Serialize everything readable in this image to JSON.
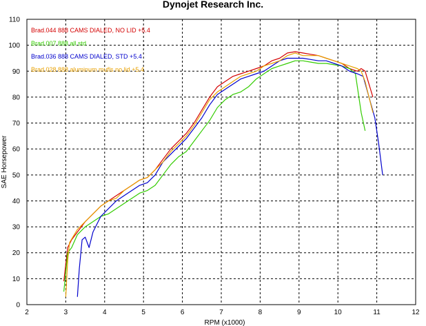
{
  "chart_data": {
    "type": "line",
    "title": "Dynojet  Research  Inc.",
    "xlabel": "RPM (x1000)",
    "ylabel": "SAE Horsepower",
    "xlim": [
      2,
      12
    ],
    "ylim": [
      0,
      110
    ],
    "xticks": [
      "2",
      "3",
      "4",
      "5",
      "6",
      "7",
      "8",
      "9",
      "10",
      "11",
      "12"
    ],
    "yticks": [
      "0",
      "10",
      "20",
      "30",
      "40",
      "50",
      "60",
      "70",
      "80",
      "90",
      "100",
      "110"
    ],
    "grid": true,
    "legend_position": "top-left",
    "series": [
      {
        "name": "Brad.044   888 CAMS DIALED, NO LID +5.4",
        "color": "#d40000",
        "points": [
          [
            2.95,
            9
          ],
          [
            3.05,
            22
          ],
          [
            3.15,
            25
          ],
          [
            3.3,
            28
          ],
          [
            3.5,
            32
          ],
          [
            3.7,
            35
          ],
          [
            3.9,
            38
          ],
          [
            4.1,
            40
          ],
          [
            4.3,
            42
          ],
          [
            4.5,
            44
          ],
          [
            4.7,
            46
          ],
          [
            4.9,
            48
          ],
          [
            5.1,
            49
          ],
          [
            5.3,
            52
          ],
          [
            5.5,
            56
          ],
          [
            5.7,
            60
          ],
          [
            5.9,
            63
          ],
          [
            6.1,
            66
          ],
          [
            6.3,
            70
          ],
          [
            6.5,
            75
          ],
          [
            6.7,
            80
          ],
          [
            6.9,
            84
          ],
          [
            7.1,
            86
          ],
          [
            7.3,
            88
          ],
          [
            7.5,
            89
          ],
          [
            7.7,
            90
          ],
          [
            7.9,
            91
          ],
          [
            8.1,
            92
          ],
          [
            8.3,
            94
          ],
          [
            8.5,
            95
          ],
          [
            8.7,
            97
          ],
          [
            8.9,
            97.5
          ],
          [
            9.1,
            97
          ],
          [
            9.3,
            96.5
          ],
          [
            9.5,
            96
          ],
          [
            9.7,
            95
          ],
          [
            9.9,
            94
          ],
          [
            10.1,
            93
          ],
          [
            10.3,
            91
          ],
          [
            10.5,
            90
          ],
          [
            10.6,
            91
          ],
          [
            10.7,
            90
          ],
          [
            10.8,
            85
          ],
          [
            10.9,
            80
          ]
        ]
      },
      {
        "name": "Brad.007   888 all std",
        "color": "#33cc00",
        "points": [
          [
            2.95,
            5
          ],
          [
            3.05,
            20
          ],
          [
            3.15,
            22
          ],
          [
            3.3,
            27
          ],
          [
            3.5,
            30
          ],
          [
            3.7,
            32
          ],
          [
            3.9,
            34
          ],
          [
            4.1,
            35
          ],
          [
            4.3,
            37
          ],
          [
            4.5,
            39
          ],
          [
            4.7,
            41
          ],
          [
            4.9,
            43
          ],
          [
            5.1,
            44
          ],
          [
            5.3,
            46
          ],
          [
            5.5,
            50
          ],
          [
            5.7,
            54
          ],
          [
            5.9,
            57
          ],
          [
            6.1,
            59
          ],
          [
            6.3,
            63
          ],
          [
            6.5,
            67
          ],
          [
            6.7,
            71
          ],
          [
            6.9,
            76
          ],
          [
            7.1,
            79
          ],
          [
            7.3,
            81
          ],
          [
            7.5,
            82
          ],
          [
            7.7,
            84
          ],
          [
            7.9,
            87
          ],
          [
            8.1,
            89
          ],
          [
            8.3,
            91
          ],
          [
            8.5,
            92
          ],
          [
            8.7,
            93
          ],
          [
            8.9,
            94
          ],
          [
            9.1,
            94
          ],
          [
            9.3,
            93.5
          ],
          [
            9.5,
            93
          ],
          [
            9.7,
            93
          ],
          [
            9.9,
            92.5
          ],
          [
            10.1,
            92
          ],
          [
            10.3,
            91
          ],
          [
            10.45,
            89
          ],
          [
            10.5,
            84
          ],
          [
            10.6,
            74
          ],
          [
            10.7,
            67
          ]
        ]
      },
      {
        "name": "Brad.036   888 CAMS DIALED, STD +5.4",
        "color": "#0000cc",
        "points": [
          [
            3.3,
            3
          ],
          [
            3.35,
            14
          ],
          [
            3.42,
            25
          ],
          [
            3.5,
            26
          ],
          [
            3.6,
            22
          ],
          [
            3.7,
            28
          ],
          [
            3.9,
            34
          ],
          [
            4.1,
            37
          ],
          [
            4.3,
            40
          ],
          [
            4.5,
            42
          ],
          [
            4.7,
            44
          ],
          [
            4.9,
            46
          ],
          [
            5.1,
            47
          ],
          [
            5.3,
            50
          ],
          [
            5.5,
            55
          ],
          [
            5.7,
            58
          ],
          [
            5.9,
            61
          ],
          [
            6.1,
            64
          ],
          [
            6.3,
            68
          ],
          [
            6.5,
            72
          ],
          [
            6.7,
            77
          ],
          [
            6.9,
            81
          ],
          [
            7.1,
            83
          ],
          [
            7.3,
            85
          ],
          [
            7.5,
            87
          ],
          [
            7.7,
            88
          ],
          [
            7.9,
            89
          ],
          [
            8.1,
            90
          ],
          [
            8.3,
            92
          ],
          [
            8.5,
            94
          ],
          [
            8.7,
            95
          ],
          [
            8.9,
            95
          ],
          [
            9.1,
            95
          ],
          [
            9.3,
            94.5
          ],
          [
            9.5,
            94
          ],
          [
            9.7,
            94
          ],
          [
            9.9,
            93
          ],
          [
            10.1,
            92
          ],
          [
            10.3,
            90
          ],
          [
            10.5,
            89
          ],
          [
            10.65,
            88
          ],
          [
            10.8,
            80
          ],
          [
            10.95,
            72
          ],
          [
            11.05,
            62
          ],
          [
            11.15,
            50
          ]
        ]
      },
      {
        "name": "Brad.028   888 aluminum mufls no lid +5.4",
        "color": "#e8a000",
        "points": [
          [
            3.0,
            3
          ],
          [
            3.05,
            17
          ],
          [
            3.1,
            24
          ],
          [
            3.3,
            29
          ],
          [
            3.5,
            32
          ],
          [
            3.7,
            35
          ],
          [
            3.9,
            38
          ],
          [
            4.1,
            40
          ],
          [
            4.3,
            41
          ],
          [
            4.5,
            44
          ],
          [
            4.7,
            46
          ],
          [
            4.9,
            48
          ],
          [
            5.1,
            49
          ],
          [
            5.3,
            52
          ],
          [
            5.5,
            55
          ],
          [
            5.7,
            59
          ],
          [
            5.9,
            62
          ],
          [
            6.1,
            65
          ],
          [
            6.3,
            69
          ],
          [
            6.5,
            74
          ],
          [
            6.7,
            79
          ],
          [
            6.9,
            82
          ],
          [
            7.1,
            84
          ],
          [
            7.3,
            86
          ],
          [
            7.5,
            88
          ],
          [
            7.7,
            89
          ],
          [
            7.9,
            90
          ],
          [
            8.1,
            92
          ],
          [
            8.3,
            93
          ],
          [
            8.5,
            94
          ],
          [
            8.7,
            96
          ],
          [
            8.9,
            97
          ],
          [
            9.1,
            96
          ],
          [
            9.3,
            96
          ],
          [
            9.5,
            96
          ],
          [
            9.7,
            95
          ],
          [
            9.9,
            94
          ],
          [
            10.1,
            93
          ],
          [
            10.3,
            92
          ],
          [
            10.5,
            91
          ],
          [
            10.6,
            90
          ],
          [
            10.7,
            86
          ],
          [
            10.8,
            80
          ],
          [
            10.9,
            74
          ]
        ]
      }
    ]
  }
}
